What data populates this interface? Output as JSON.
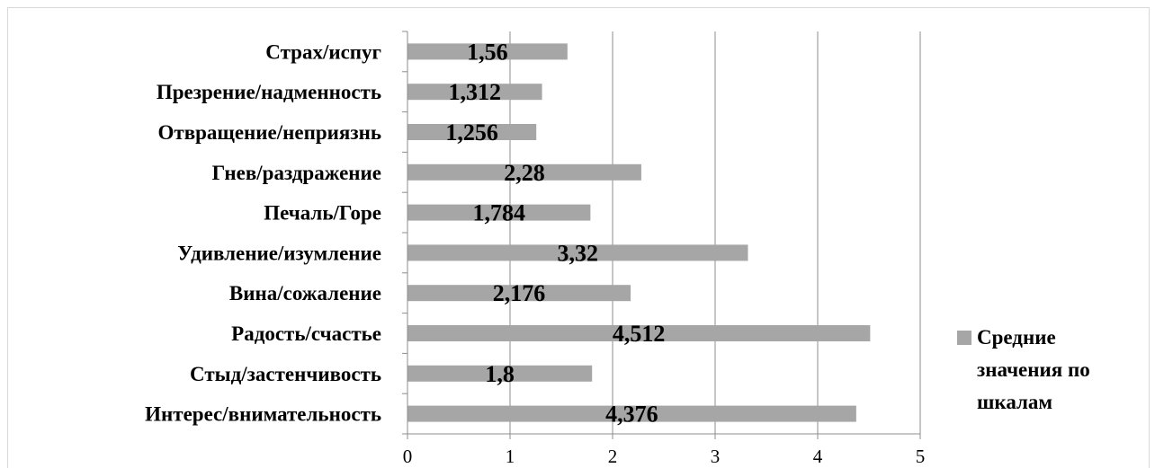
{
  "chart_data": {
    "type": "bar",
    "orientation": "horizontal",
    "categories": [
      "Интерес/внимательность",
      "Стыд/застенчивость",
      "Радость/счастье",
      "Вина/сожаление",
      "Удивление/изумление",
      "Печаль/Горе",
      "Гнев/раздражение",
      "Отвращение/неприязнь",
      "Презрение/надменность",
      "Страх/испуг"
    ],
    "series": [
      {
        "name": "Средние значения по шкалам",
        "values": [
          4.376,
          1.8,
          4.512,
          2.176,
          3.32,
          1.784,
          2.28,
          1.256,
          1.312,
          1.56
        ],
        "labels": [
          "4,376",
          "1,8",
          "4,512",
          "2,176",
          "3,32",
          "1,784",
          "2,28",
          "1,256",
          "1,312",
          "1,56"
        ],
        "color": "#a6a6a6"
      }
    ],
    "xlim": [
      0,
      5
    ],
    "xticks": [
      "0",
      "1",
      "2",
      "3",
      "4",
      "5"
    ],
    "grid": "vertical",
    "legend_position": "right",
    "gridline_color": "#8c8c8c"
  }
}
